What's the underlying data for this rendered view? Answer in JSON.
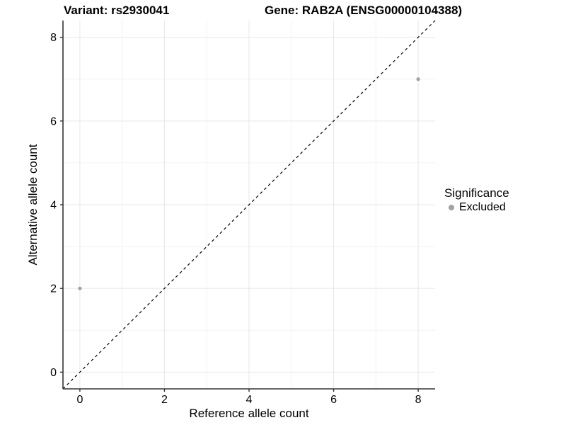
{
  "title": {
    "variant": "Variant: rs2930041",
    "gene": "Gene: RAB2A (ENSG00000104388)"
  },
  "axes": {
    "x_label": "Reference allele count",
    "y_label": "Alternative allele count"
  },
  "legend": {
    "title": "Significance",
    "items": [
      {
        "label": "Excluded",
        "color": "#a2a2a2"
      }
    ]
  },
  "colors": {
    "background": "#ffffff",
    "grid_major": "#e7e7e7",
    "grid_minor": "#f2f2f2",
    "axis_line": "#333333",
    "tick_label": "#000000",
    "identity_line": "#000000",
    "point": "#a2a2a2"
  },
  "chart_data": {
    "type": "scatter",
    "title": "Variant: rs2930041    Gene: RAB2A (ENSG00000104388)",
    "xlabel": "Reference allele count",
    "ylabel": "Alternative allele count",
    "xlim": [
      -0.4,
      8.4
    ],
    "ylim": [
      -0.4,
      8.4
    ],
    "x_ticks": [
      0,
      2,
      4,
      6,
      8
    ],
    "y_ticks": [
      0,
      2,
      4,
      6,
      8
    ],
    "x_minor_ticks": [
      1,
      3,
      5,
      7
    ],
    "y_minor_ticks": [
      1,
      3,
      5,
      7
    ],
    "grid": true,
    "legend_position": "right",
    "series": [
      {
        "name": "Excluded",
        "color": "#a2a2a2",
        "points": [
          [
            0,
            2
          ],
          [
            8,
            7
          ]
        ]
      }
    ],
    "reference_line": {
      "slope": 1,
      "intercept": 0,
      "style": "dashed",
      "color": "#000000"
    }
  }
}
